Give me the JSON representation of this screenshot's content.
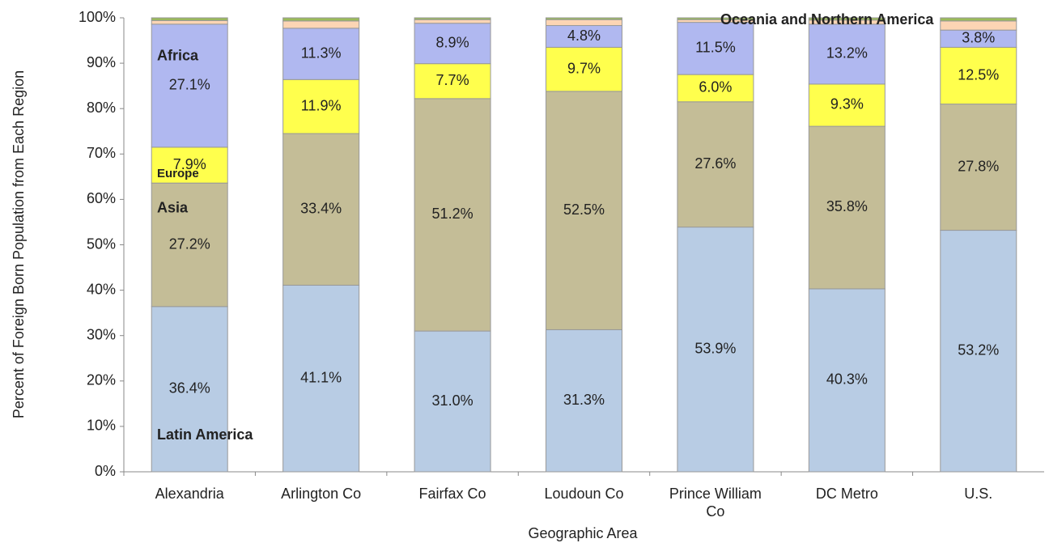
{
  "chart_data": {
    "type": "stacked-bar",
    "x_label": "Geographic Area",
    "y_label": "Percent of Foreign Born Population from Each Region",
    "categories": [
      "Alexandria",
      "Arlington Co",
      "Fairfax Co",
      "Loudoun Co",
      "Prince William Co",
      "DC Metro",
      "U.S."
    ],
    "ylim": [
      0,
      100
    ],
    "yticks": [
      {
        "value": 0,
        "label": "0%"
      },
      {
        "value": 10,
        "label": "10%"
      },
      {
        "value": 20,
        "label": "20%"
      },
      {
        "value": 30,
        "label": "30%"
      },
      {
        "value": 40,
        "label": "40%"
      },
      {
        "value": 50,
        "label": "50%"
      },
      {
        "value": 60,
        "label": "60%"
      },
      {
        "value": 70,
        "label": "70%"
      },
      {
        "value": 80,
        "label": "80%"
      },
      {
        "value": 90,
        "label": "90%"
      },
      {
        "value": 100,
        "label": "100%"
      }
    ],
    "grid": false,
    "series": [
      {
        "name": "Latin America",
        "color": "#b8cce4",
        "values": [
          36.4,
          41.1,
          31.0,
          31.3,
          53.9,
          40.3,
          53.2
        ],
        "value_labels": [
          "36.4%",
          "41.1%",
          "31.0%",
          "31.3%",
          "53.9%",
          "40.3%",
          "53.2%"
        ]
      },
      {
        "name": "Asia",
        "color": "#c4bd97",
        "values": [
          27.2,
          33.4,
          51.2,
          52.5,
          27.6,
          35.8,
          27.8
        ],
        "value_labels": [
          "27.2%",
          "33.4%",
          "51.2%",
          "52.5%",
          "27.6%",
          "35.8%",
          "27.8%"
        ]
      },
      {
        "name": "Europe",
        "color": "#ffff4d",
        "values": [
          7.9,
          11.9,
          7.7,
          9.7,
          6.0,
          9.3,
          12.5
        ],
        "value_labels": [
          "7.9%",
          "11.9%",
          "7.7%",
          "9.7%",
          "6.0%",
          "9.3%",
          "12.5%"
        ]
      },
      {
        "name": "Africa",
        "color": "#b0b8f0",
        "values": [
          27.1,
          11.3,
          8.9,
          4.8,
          11.5,
          13.2,
          3.8
        ],
        "value_labels": [
          "27.1%",
          "11.3%",
          "8.9%",
          "4.8%",
          "11.5%",
          "13.2%",
          "3.8%"
        ]
      },
      {
        "name": "Oceania and Northern America",
        "color": "#fcd5b4",
        "values": [
          0.8,
          1.6,
          0.8,
          1.3,
          0.6,
          0.9,
          2.0
        ]
      },
      {
        "color": "#9bbb59",
        "values": [
          0.6,
          0.7,
          0.4,
          0.4,
          0.4,
          0.5,
          0.7
        ]
      }
    ]
  }
}
